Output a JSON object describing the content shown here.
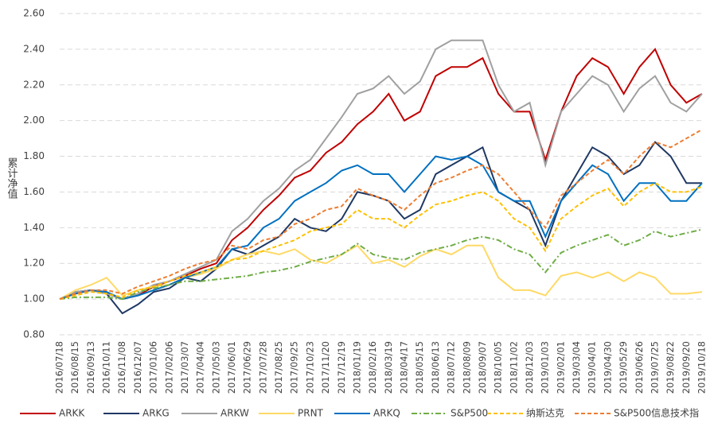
{
  "chart_data": {
    "type": "line",
    "y_label": "累计净值",
    "categories": [
      "2016/07/18",
      "2016/08/15",
      "2016/09/13",
      "2016/10/11",
      "2016/11/08",
      "2016/12/07",
      "2017/01/06",
      "2017/02/06",
      "2017/03/07",
      "2017/04/04",
      "2017/05/03",
      "2017/06/01",
      "2017/06/29",
      "2017/07/28",
      "2017/08/25",
      "2017/09/25",
      "2017/10/23",
      "2017/11/20",
      "2017/12/19",
      "2018/01/19",
      "2018/02/16",
      "2018/03/19",
      "2018/04/17",
      "2018/05/15",
      "2018/06/13",
      "2018/07/12",
      "2018/08/09",
      "2018/09/07",
      "2018/10/05",
      "2018/11/02",
      "2018/12/03",
      "2019/01/03",
      "2019/02/01",
      "2019/03/04",
      "2019/04/01",
      "2019/04/30",
      "2019/05/29",
      "2019/06/26",
      "2019/07/25",
      "2019/08/22",
      "2019/09/20",
      "2019/10/18"
    ],
    "series": [
      {
        "name": "ARKK",
        "color": "#c00000",
        "dash": "solid",
        "values": [
          1.0,
          1.03,
          1.05,
          1.03,
          1.0,
          1.02,
          1.07,
          1.1,
          1.13,
          1.17,
          1.2,
          1.33,
          1.4,
          1.5,
          1.58,
          1.68,
          1.72,
          1.82,
          1.88,
          1.98,
          2.05,
          2.15,
          2.0,
          2.05,
          2.25,
          2.3,
          2.3,
          2.35,
          2.15,
          2.05,
          2.05,
          1.78,
          2.05,
          2.25,
          2.35,
          2.3,
          2.15,
          2.3,
          2.4,
          2.2,
          2.1,
          2.15
        ]
      },
      {
        "name": "ARKG",
        "color": "#1f3864",
        "dash": "solid",
        "values": [
          1.0,
          1.04,
          1.05,
          1.03,
          0.92,
          0.97,
          1.04,
          1.06,
          1.12,
          1.1,
          1.17,
          1.28,
          1.25,
          1.3,
          1.35,
          1.45,
          1.4,
          1.38,
          1.45,
          1.6,
          1.58,
          1.55,
          1.45,
          1.5,
          1.7,
          1.75,
          1.8,
          1.85,
          1.6,
          1.55,
          1.5,
          1.3,
          1.55,
          1.7,
          1.85,
          1.8,
          1.7,
          1.75,
          1.88,
          1.8,
          1.65,
          1.65
        ]
      },
      {
        "name": "ARKW",
        "color": "#a0a0a0",
        "dash": "solid",
        "values": [
          1.0,
          1.04,
          1.05,
          1.03,
          1.0,
          1.03,
          1.08,
          1.1,
          1.14,
          1.18,
          1.22,
          1.38,
          1.45,
          1.55,
          1.62,
          1.72,
          1.78,
          1.9,
          2.02,
          2.15,
          2.18,
          2.25,
          2.15,
          2.22,
          2.4,
          2.45,
          2.45,
          2.45,
          2.2,
          2.05,
          2.1,
          1.75,
          2.05,
          2.15,
          2.25,
          2.2,
          2.05,
          2.18,
          2.25,
          2.1,
          2.05,
          2.15
        ]
      },
      {
        "name": "PRNT",
        "color": "#ffd966",
        "dash": "solid",
        "values": [
          1.0,
          1.05,
          1.08,
          1.12,
          1.02,
          1.05,
          1.07,
          1.08,
          1.12,
          1.14,
          1.17,
          1.22,
          1.25,
          1.27,
          1.25,
          1.28,
          1.22,
          1.2,
          1.25,
          1.3,
          1.2,
          1.22,
          1.18,
          1.24,
          1.28,
          1.25,
          1.3,
          1.3,
          1.12,
          1.05,
          1.05,
          1.02,
          1.13,
          1.15,
          1.12,
          1.15,
          1.1,
          1.15,
          1.12,
          1.03,
          1.03,
          1.04
        ]
      },
      {
        "name": "ARKQ",
        "color": "#0070c0",
        "dash": "solid",
        "values": [
          1.0,
          1.03,
          1.05,
          1.04,
          1.0,
          1.02,
          1.05,
          1.08,
          1.12,
          1.15,
          1.18,
          1.28,
          1.3,
          1.4,
          1.45,
          1.55,
          1.6,
          1.65,
          1.72,
          1.75,
          1.7,
          1.7,
          1.6,
          1.7,
          1.8,
          1.78,
          1.8,
          1.75,
          1.6,
          1.55,
          1.55,
          1.35,
          1.55,
          1.65,
          1.75,
          1.7,
          1.55,
          1.65,
          1.65,
          1.55,
          1.55,
          1.65
        ]
      },
      {
        "name": "S&P500",
        "color": "#70ad47",
        "dash": "dashdot",
        "values": [
          1.0,
          1.01,
          1.01,
          1.01,
          1.0,
          1.04,
          1.06,
          1.08,
          1.1,
          1.1,
          1.11,
          1.12,
          1.13,
          1.15,
          1.16,
          1.18,
          1.21,
          1.23,
          1.25,
          1.31,
          1.25,
          1.23,
          1.22,
          1.26,
          1.28,
          1.3,
          1.33,
          1.35,
          1.33,
          1.28,
          1.25,
          1.15,
          1.26,
          1.3,
          1.33,
          1.36,
          1.3,
          1.33,
          1.38,
          1.35,
          1.37,
          1.39
        ]
      },
      {
        "name": "纳斯达克",
        "color": "#ffc000",
        "dash": "dash",
        "values": [
          1.0,
          1.02,
          1.04,
          1.03,
          1.01,
          1.05,
          1.07,
          1.1,
          1.13,
          1.15,
          1.18,
          1.22,
          1.23,
          1.27,
          1.3,
          1.33,
          1.38,
          1.4,
          1.42,
          1.5,
          1.45,
          1.45,
          1.4,
          1.47,
          1.53,
          1.55,
          1.58,
          1.6,
          1.55,
          1.45,
          1.4,
          1.27,
          1.45,
          1.52,
          1.58,
          1.62,
          1.52,
          1.6,
          1.65,
          1.6,
          1.6,
          1.63
        ]
      },
      {
        "name": "S&P500信息技术指",
        "color": "#ed7d31",
        "dash": "dash",
        "values": [
          1.0,
          1.03,
          1.05,
          1.05,
          1.03,
          1.07,
          1.1,
          1.13,
          1.17,
          1.2,
          1.22,
          1.3,
          1.28,
          1.33,
          1.35,
          1.42,
          1.45,
          1.5,
          1.52,
          1.62,
          1.58,
          1.55,
          1.5,
          1.58,
          1.65,
          1.68,
          1.72,
          1.75,
          1.7,
          1.6,
          1.5,
          1.4,
          1.58,
          1.65,
          1.72,
          1.78,
          1.7,
          1.8,
          1.88,
          1.85,
          1.9,
          1.95
        ]
      }
    ],
    "ylim": [
      0.8,
      2.6
    ],
    "yticks": [
      {
        "value": 0.8,
        "label": "0.80"
      },
      {
        "value": 1.0,
        "label": "1.00"
      },
      {
        "value": 1.2,
        "label": "1.20"
      },
      {
        "value": 1.4,
        "label": "1.40"
      },
      {
        "value": 1.6,
        "label": "1.60"
      },
      {
        "value": 1.8,
        "label": "1.80"
      },
      {
        "value": 2.0,
        "label": "2.00"
      },
      {
        "value": 2.2,
        "label": "2.20"
      },
      {
        "value": 2.4,
        "label": "2.40"
      },
      {
        "value": 2.6,
        "label": "2.60"
      }
    ],
    "grid": true,
    "legend": "bottom"
  }
}
